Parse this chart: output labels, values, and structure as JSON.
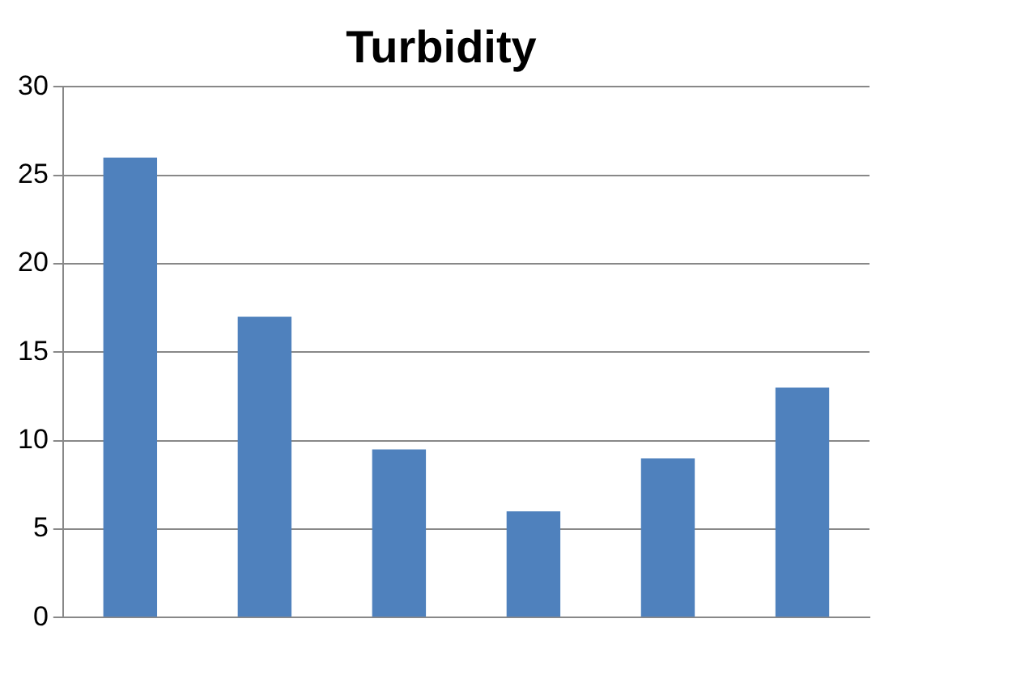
{
  "chart_data": {
    "type": "bar",
    "title": "Turbidity",
    "categories": [
      null,
      null,
      null,
      null,
      null,
      null
    ],
    "values": [
      26,
      17,
      9.5,
      6,
      9,
      13
    ],
    "color": "#4f81bd",
    "ylim": [
      0,
      30
    ],
    "yticks": [
      0,
      5,
      10,
      15,
      20,
      25,
      30
    ],
    "grid": "y",
    "legend": false
  }
}
